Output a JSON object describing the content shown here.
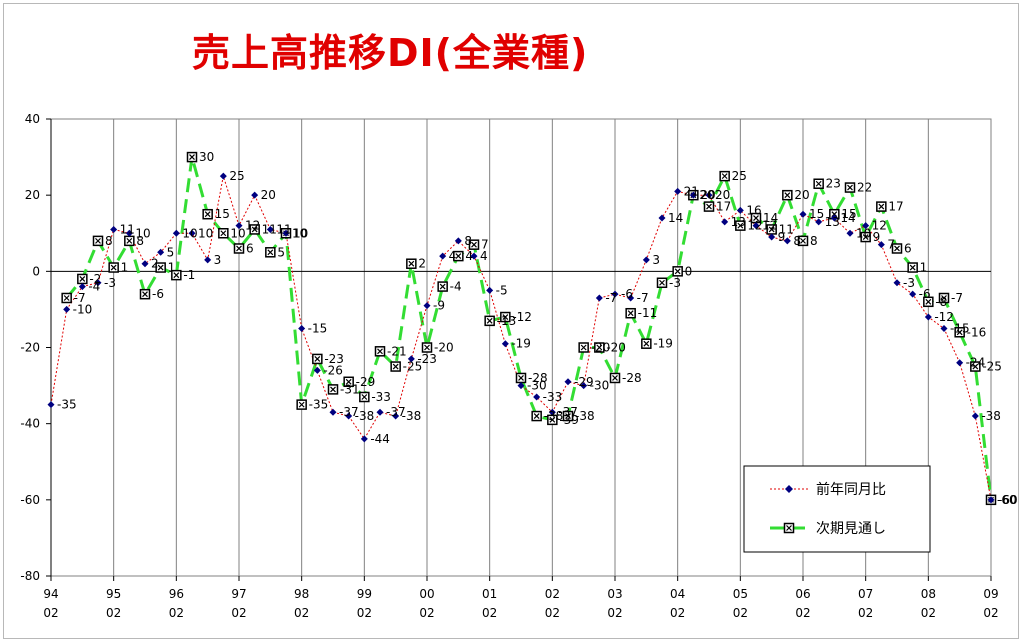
{
  "chart_data": {
    "type": "line",
    "title": "売上高推移DI(全業種)",
    "ylim": [
      -80,
      40
    ],
    "yticks": [
      40,
      20,
      0,
      -20,
      -40,
      -60,
      -80
    ],
    "x_year_labels": [
      "94",
      "95",
      "96",
      "97",
      "98",
      "99",
      "00",
      "01",
      "02",
      "03",
      "04",
      "05",
      "06",
      "07",
      "08",
      "09"
    ],
    "x_month_label": "02",
    "grid": "vertical gridlines at each year, horizontal line at zero",
    "legend_position": "bottom-right",
    "series": [
      {
        "name": "前年同月比",
        "color": "#e00000",
        "marker_color": "#000080",
        "x": [
          1994.0,
          1994.25,
          1994.5,
          1994.75,
          1995.0,
          1995.25,
          1995.5,
          1995.75,
          1996.0,
          1996.25,
          1996.5,
          1996.75,
          1997.0,
          1997.25,
          1997.5,
          1997.75,
          1998.0,
          1998.25,
          1998.5,
          1998.75,
          1999.0,
          1999.25,
          1999.5,
          1999.75,
          2000.0,
          2000.25,
          2000.5,
          2000.75,
          2001.0,
          2001.25,
          2001.5,
          2001.75,
          2002.0,
          2002.25,
          2002.5,
          2002.75,
          2003.0,
          2003.25,
          2003.5,
          2003.75,
          2004.0,
          2004.25,
          2004.5,
          2004.75,
          2005.0,
          2005.25,
          2005.5,
          2005.75,
          2006.0,
          2006.25,
          2006.5,
          2006.75,
          2007.0,
          2007.25,
          2007.5,
          2007.75,
          2008.0,
          2008.25,
          2008.5,
          2008.75,
          2009.0
        ],
        "values": [
          -35,
          -10,
          -4,
          -3,
          11,
          10,
          2,
          5,
          10,
          10,
          3,
          25,
          12,
          20,
          11,
          10,
          -15,
          -26,
          -37,
          -38,
          -44,
          -37,
          -38,
          -23,
          -9,
          4,
          8,
          4,
          -5,
          -19,
          -30,
          -33,
          -37,
          -29,
          -30,
          -7,
          -6,
          -7,
          3,
          14,
          21,
          20,
          20,
          13,
          16,
          12,
          9,
          8,
          15,
          13,
          14,
          10,
          12,
          7,
          -3,
          -6,
          -12,
          -15,
          -24,
          -38,
          -60
        ],
        "data_labels": [
          "-35",
          "-10",
          "-4",
          "-3",
          "11",
          "10",
          "2",
          "5",
          "10",
          "10",
          "3",
          "25",
          "12",
          "20",
          "11",
          "10",
          "-15",
          "-26",
          "-37",
          "-38",
          "-44",
          "-37",
          "-38",
          "-23",
          "-9",
          "4",
          "8",
          "4",
          "-5",
          "-19",
          "-30",
          "-33",
          "-37",
          "-29",
          "-30",
          "-7",
          "-6",
          "-7",
          "3",
          "14",
          "21",
          "20",
          "20",
          "13",
          "16",
          "12",
          "9",
          "8",
          "15",
          "13",
          "14",
          "10",
          "12",
          "7",
          "-3",
          "-6",
          "-12",
          "-15",
          "-24",
          "-38",
          "-60"
        ]
      },
      {
        "name": "次期見通し",
        "color": "#33dd33",
        "marker_color": "#000000",
        "x": [
          1994.25,
          1994.5,
          1994.75,
          1995.0,
          1995.25,
          1995.5,
          1995.75,
          1996.0,
          1996.25,
          1996.5,
          1996.75,
          1997.0,
          1997.25,
          1997.5,
          1997.75,
          1998.0,
          1998.25,
          1998.5,
          1998.75,
          1999.0,
          1999.25,
          1999.5,
          1999.75,
          2000.0,
          2000.25,
          2000.5,
          2000.75,
          2001.0,
          2001.25,
          2001.5,
          2001.75,
          2002.0,
          2002.25,
          2002.5,
          2002.75,
          2003.0,
          2003.25,
          2003.5,
          2003.75,
          2004.0,
          2004.25,
          2004.5,
          2004.75,
          2005.0,
          2005.25,
          2005.5,
          2005.75,
          2006.0,
          2006.25,
          2006.5,
          2006.75,
          2007.0,
          2007.25,
          2007.5,
          2007.75,
          2008.0,
          2008.25,
          2008.5,
          2008.75,
          2009.0
        ],
        "values": [
          -7,
          -2,
          8,
          1,
          8,
          -6,
          1,
          -1,
          30,
          15,
          10,
          6,
          11,
          5,
          10,
          -35,
          -23,
          -31,
          -29,
          -33,
          -21,
          -25,
          2,
          -20,
          -4,
          4,
          7,
          -13,
          -12,
          -28,
          -38,
          -39,
          -38,
          -20,
          -20,
          -28,
          -11,
          -19,
          -3,
          0,
          20,
          17,
          25,
          12,
          14,
          11,
          20,
          8,
          23,
          15,
          22,
          9,
          17,
          6,
          1,
          -8,
          -7,
          -16,
          -25,
          -60
        ],
        "data_labels": [
          "-7",
          "-2",
          "8",
          "1",
          "8",
          "-6",
          "1",
          "-1",
          "30",
          "15",
          "10",
          "6",
          "11",
          "5",
          "10",
          "-35",
          "-23",
          "-31",
          "-29",
          "-33",
          "-21",
          "-25",
          "2",
          "-20",
          "-4",
          "4",
          "7",
          "-13",
          "-12",
          "-28",
          "-38",
          "-39",
          "-38",
          "-20",
          "-20",
          "-28",
          "-11",
          "-19",
          "-3",
          "0",
          "20",
          "17",
          "25",
          "12",
          "14",
          "11",
          "20",
          "8",
          "23",
          "15",
          "22",
          "9",
          "17",
          "6",
          "1",
          "-8",
          "-7",
          "-16",
          "-25",
          "-60"
        ]
      }
    ]
  }
}
